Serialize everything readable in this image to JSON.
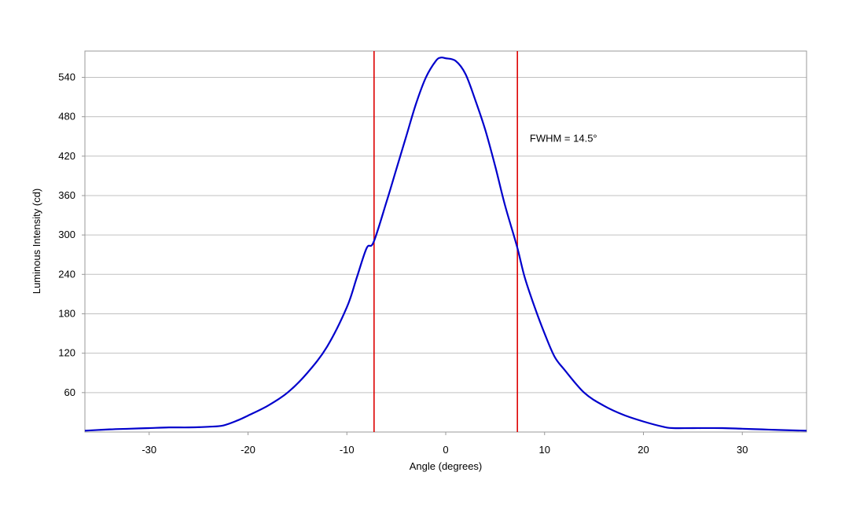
{
  "chart_data": {
    "type": "line",
    "title": "",
    "xlabel": "Angle (degrees)",
    "ylabel": "Luminous Intensity (cd)",
    "xlim": [
      -36.5,
      36.5
    ],
    "ylim": [
      0,
      580
    ],
    "x_ticks": [
      -30,
      -20,
      -10,
      0,
      10,
      20,
      30
    ],
    "x_tick_labels": [
      "-30",
      "-20",
      "-10",
      "0",
      "10",
      "20",
      "30"
    ],
    "y_ticks": [
      60,
      120,
      180,
      240,
      300,
      360,
      420,
      480,
      540
    ],
    "y_tick_labels": [
      "60",
      "120",
      "180",
      "240",
      "300",
      "360",
      "420",
      "480",
      "540"
    ],
    "grid": "horizontal",
    "legend": "none",
    "series": [
      {
        "color": "#0000cc",
        "x": [
          -36.5,
          -34,
          -32,
          -30,
          -28,
          -26,
          -24,
          -22.5,
          -21,
          -20,
          -18,
          -16,
          -14,
          -12,
          -10,
          -9,
          -8,
          -7.3,
          -6,
          -5,
          -4,
          -3,
          -2,
          -1,
          -0.5,
          0,
          1,
          2,
          3,
          4,
          5,
          6,
          7.2,
          8,
          9,
          10,
          11,
          12,
          14,
          16,
          18,
          20,
          22,
          23,
          25,
          28,
          30,
          32,
          34,
          36.5
        ],
        "y": [
          2,
          4,
          5,
          6,
          7,
          7,
          8,
          10,
          18,
          25,
          40,
          60,
          90,
          130,
          190,
          235,
          280,
          289,
          350,
          400,
          450,
          500,
          540,
          565,
          570,
          569,
          565,
          545,
          505,
          460,
          405,
          345,
          283,
          235,
          190,
          150,
          115,
          95,
          60,
          40,
          26,
          16,
          8,
          6,
          6,
          6,
          5,
          4,
          3,
          2
        ]
      }
    ],
    "annotations": [
      {
        "text": "FWHM = 14.5°",
        "x": 8.5,
        "y": 448
      }
    ],
    "reference_lines": [
      {
        "orientation": "vertical",
        "x": -7.25,
        "color": "#dd0000"
      },
      {
        "orientation": "vertical",
        "x": 7.25,
        "color": "#dd0000"
      }
    ],
    "colors": {
      "curve": "#0000cc",
      "fwhm_lines": "#dd0000",
      "grid": "#c0c0c0",
      "frame": "#999999"
    }
  }
}
